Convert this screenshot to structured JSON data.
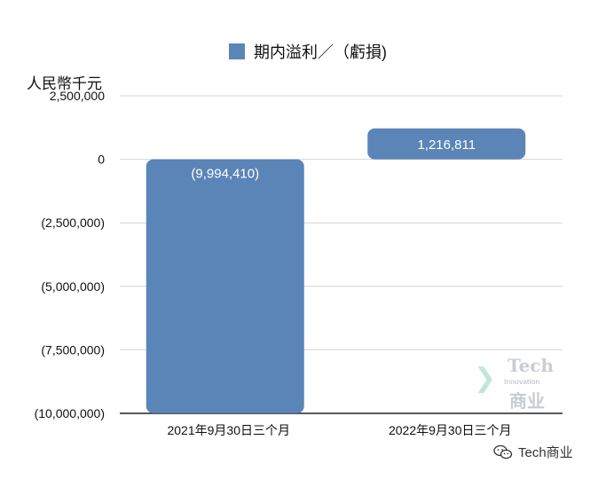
{
  "chart_data": {
    "type": "bar",
    "legend": "期内溢利／（虧損)",
    "y_unit": "人民幣千元",
    "categories": [
      "2021年9月30日三个月",
      "2022年9月30日三个月"
    ],
    "series": [
      {
        "name": "期内溢利／（虧損)",
        "values": [
          -9994410,
          1216811
        ],
        "labels": [
          "(9,994,410)",
          "1,216,811"
        ],
        "color": "#5b85b7"
      }
    ],
    "ylim": [
      -10000000,
      2500000
    ],
    "ytick_values": [
      2500000,
      0,
      -2500000,
      -5000000,
      -7500000,
      -10000000
    ],
    "ytick_labels": [
      "2,500,000",
      "0",
      "(2,500,000)",
      "(5,000,000)",
      "(7,500,000)",
      "(10,000,000)"
    ],
    "grid": true,
    "legend_position": "top-center"
  },
  "watermark": {
    "line1": "Tech",
    "line2": "Innovation",
    "line3": "商业"
  },
  "footer": {
    "brand": "Tech商业",
    "icon": "wechat-icon"
  }
}
